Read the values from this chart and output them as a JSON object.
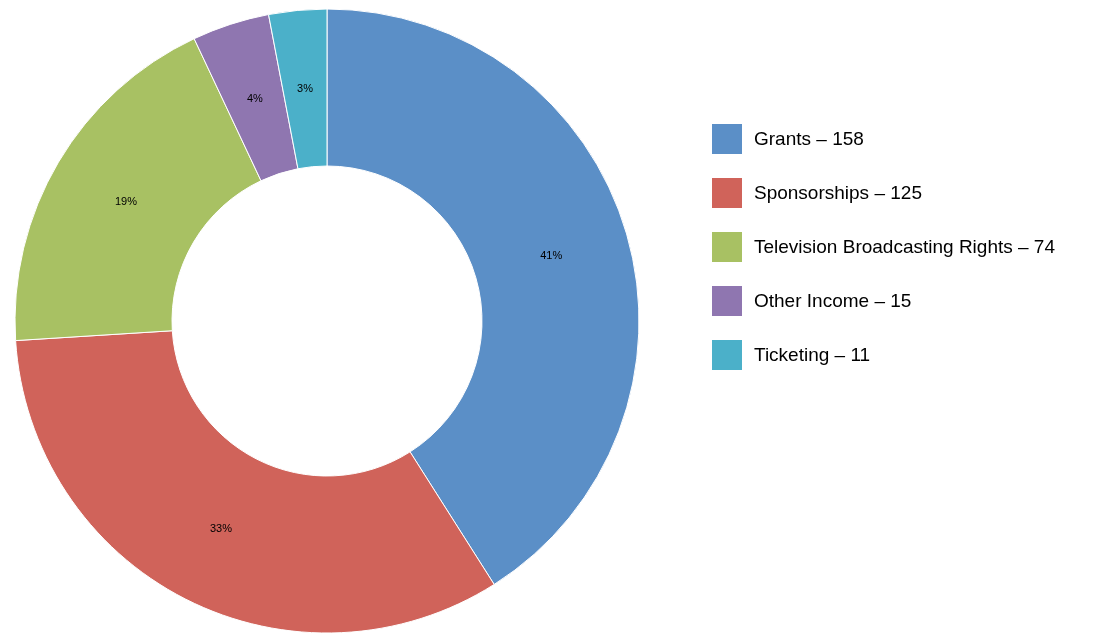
{
  "chart_data": {
    "type": "donut",
    "categories": [
      "Grants – 158",
      "Sponsorships – 125",
      "Television Broadcasting Rights – 74",
      "Other Income – 15",
      "Ticketing – 11"
    ],
    "values": [
      41,
      33,
      19,
      4,
      3
    ],
    "colors": [
      "#5b8fc7",
      "#d0635a",
      "#a8c163",
      "#8f76b0",
      "#4bb0c9"
    ],
    "value_labels": [
      "41%",
      "33%",
      "19%",
      "4%",
      "3%"
    ],
    "legend": "right"
  }
}
